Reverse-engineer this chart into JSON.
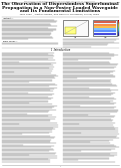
{
  "title_line1": "The Observation of Dispersionless Superluminal",
  "title_line2": "Propagation in a Non-Foster Loaded Waveguide",
  "title_line3": "and Its Fundamental Limitations",
  "authors": "Jiang Yang¹, Alastair Hibbis, and Daniel S. Korampan, Fellow, IEEE",
  "bg_color": "#ffffff",
  "text_color": "#000000",
  "title_color": "#000000",
  "header_line_color": "#aaaaaa",
  "body_text_color": "#444444",
  "fig_box1_fill": "#ffffd0",
  "fig_box2_fill": "#d0e8ff",
  "fig_border_color": "#555555"
}
